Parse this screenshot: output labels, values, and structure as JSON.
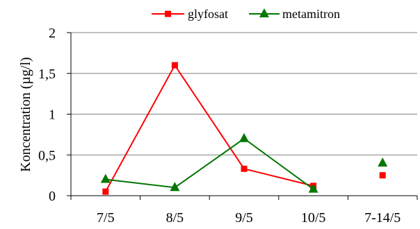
{
  "chart_data": {
    "type": "line",
    "title": "",
    "xlabel": "",
    "ylabel": "Koncentration (µg/l)",
    "categories": [
      "7/5",
      "8/5",
      "9/5",
      "10/5",
      "7-14/5"
    ],
    "ylim": [
      0,
      2
    ],
    "yticks": [
      0,
      0.5,
      1,
      1.5,
      2
    ],
    "ytick_labels": [
      "0",
      "0,5",
      "1",
      "1,5",
      "2"
    ],
    "grid": true,
    "legend_position": "top",
    "series": [
      {
        "name": "glyfosat",
        "color": "#ff0000",
        "marker": "square",
        "values": [
          0.05,
          1.6,
          0.33,
          0.12,
          0.25
        ],
        "connected": [
          true,
          true,
          true,
          true,
          false
        ]
      },
      {
        "name": "metamitron",
        "color": "#007700",
        "marker": "triangle",
        "values": [
          0.2,
          0.1,
          0.7,
          0.08,
          0.4
        ],
        "connected": [
          true,
          true,
          true,
          true,
          false
        ]
      }
    ]
  }
}
